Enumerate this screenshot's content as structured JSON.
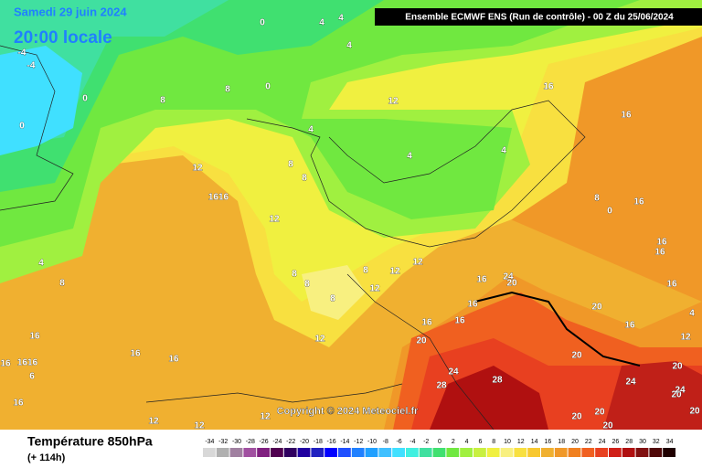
{
  "header": {
    "date": "Samedi 29 juin 2024",
    "time": "20:00 locale",
    "run": "Ensemble ECMWF ENS  (Run de contrôle)  - 00 Z du 25/06/2024"
  },
  "map": {
    "copyright": "Copyright © 2024 Meteociel.fr",
    "contour_labels": [
      "0",
      "4",
      "4",
      "4",
      "-4",
      "-4",
      "0",
      "0",
      "8",
      "8",
      "0",
      "12",
      "16",
      "16",
      "4",
      "4",
      "4",
      "12",
      "8",
      "8",
      "1616",
      "12",
      "8",
      "16",
      "0",
      "16",
      "16",
      "4",
      "8",
      "8",
      "8",
      "8",
      "8",
      "12",
      "12",
      "12",
      "16",
      "24",
      "20",
      "16",
      "16",
      "20",
      "16",
      "16",
      "16",
      "4",
      "12",
      "16",
      "12",
      "20",
      "16",
      "1616",
      "16",
      "16",
      "6",
      "20",
      "20",
      "24",
      "28",
      "24",
      "28",
      "16",
      "20",
      "24",
      "12",
      "12",
      "12",
      "20",
      "20",
      "20",
      "20"
    ]
  },
  "footer": {
    "title": "Température 850hPa",
    "lead": "(+ 114h)",
    "scale": {
      "ticks": [
        -34,
        -32,
        -30,
        -28,
        -26,
        -24,
        -22,
        -20,
        -18,
        -16,
        -14,
        -12,
        -10,
        -8,
        -6,
        -4,
        -2,
        0,
        2,
        4,
        6,
        8,
        10,
        12,
        14,
        16,
        18,
        20,
        22,
        24,
        26,
        28,
        30,
        32,
        34
      ],
      "colors": [
        "#d8d8d8",
        "#b0b0b0",
        "#a080a0",
        "#a050a0",
        "#802080",
        "#500050",
        "#300060",
        "#2000a0",
        "#2020c0",
        "#0000ff",
        "#2050ff",
        "#2080ff",
        "#20a0ff",
        "#40c0ff",
        "#40e0ff",
        "#40f0e0",
        "#40e0a0",
        "#40e070",
        "#70e840",
        "#a0f040",
        "#c8f040",
        "#f0f040",
        "#f8f080",
        "#f8e040",
        "#f8c830",
        "#f0b030",
        "#f09828",
        "#f08020",
        "#f06020",
        "#e84020",
        "#d02018",
        "#b01010",
        "#801010",
        "#500808",
        "#200000"
      ]
    }
  }
}
